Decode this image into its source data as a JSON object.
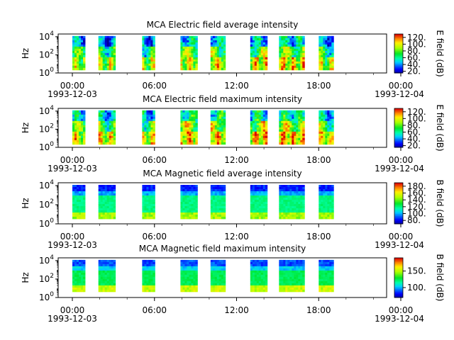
{
  "chart_data": [
    {
      "type": "heatmap",
      "title": "MCA  Electric field average intensity",
      "ylabel": "Hz",
      "y_ticks": [
        "10",
        "10",
        "10"
      ],
      "y_exps": [
        "0",
        "2",
        "4"
      ],
      "x_ticks": [
        "00:00",
        "06:00",
        "12:00",
        "18:00",
        "00:00"
      ],
      "x_dates": [
        "1993-12-03",
        "1993-12-04"
      ],
      "xlim": [
        "1993-12-03T00:00",
        "1993-12-04T00:00"
      ],
      "ylim_hz": [
        1,
        20000
      ],
      "yscale": "log",
      "colorbar_label": "E field (dB)",
      "colorbar_ticks": [
        "20.",
        "40.",
        "60.",
        "80.",
        "100.",
        "120."
      ],
      "colorbar_range": [
        15,
        130
      ],
      "data_blocks_hours": [
        [
          0.0,
          0.9
        ],
        [
          1.9,
          3.1
        ],
        [
          5.1,
          6.0
        ],
        [
          7.9,
          9.1
        ],
        [
          10.1,
          11.1
        ],
        [
          13.0,
          14.1
        ],
        [
          15.1,
          16.9
        ],
        [
          18.0,
          19.0
        ]
      ],
      "palette": "rainbow",
      "variant": "e_avg"
    },
    {
      "type": "heatmap",
      "title": "MCA  Electric field maximum intensity",
      "ylabel": "Hz",
      "y_ticks": [
        "10",
        "10",
        "10"
      ],
      "y_exps": [
        "0",
        "2",
        "4"
      ],
      "x_ticks": [
        "00:00",
        "06:00",
        "12:00",
        "18:00",
        "00:00"
      ],
      "x_dates": [
        "1993-12-03",
        "1993-12-04"
      ],
      "xlim": [
        "1993-12-03T00:00",
        "1993-12-04T00:00"
      ],
      "ylim_hz": [
        1,
        20000
      ],
      "yscale": "log",
      "colorbar_label": "E field (dB)",
      "colorbar_ticks": [
        "20.",
        "40.",
        "60.",
        "80.",
        "100.",
        "120."
      ],
      "colorbar_range": [
        15,
        130
      ],
      "data_blocks_hours": [
        [
          0.0,
          0.9
        ],
        [
          1.9,
          3.1
        ],
        [
          5.1,
          6.0
        ],
        [
          7.9,
          9.1
        ],
        [
          10.1,
          11.1
        ],
        [
          13.0,
          14.1
        ],
        [
          15.1,
          16.9
        ],
        [
          18.0,
          19.0
        ]
      ],
      "palette": "rainbow",
      "variant": "e_max"
    },
    {
      "type": "heatmap",
      "title": "MCA  Magnetic field average intensity",
      "ylabel": "Hz",
      "y_ticks": [
        "10",
        "10",
        "10"
      ],
      "y_exps": [
        "0",
        "2",
        "4"
      ],
      "x_ticks": [
        "00:00",
        "06:00",
        "12:00",
        "18:00",
        "00:00"
      ],
      "x_dates": [
        "1993-12-03",
        "1993-12-04"
      ],
      "xlim": [
        "1993-12-03T00:00",
        "1993-12-04T00:00"
      ],
      "ylim_hz": [
        1,
        20000
      ],
      "yscale": "log",
      "colorbar_label": "B field (dB)",
      "colorbar_ticks": [
        "80.",
        "100.",
        "120.",
        "140.",
        "160.",
        "180."
      ],
      "colorbar_range": [
        70,
        190
      ],
      "data_blocks_hours": [
        [
          0.0,
          0.9
        ],
        [
          1.9,
          3.1
        ],
        [
          5.1,
          6.0
        ],
        [
          7.9,
          9.1
        ],
        [
          10.1,
          11.1
        ],
        [
          13.0,
          14.1
        ],
        [
          15.1,
          16.9
        ],
        [
          18.0,
          19.0
        ]
      ],
      "palette": "rainbow",
      "variant": "b_avg"
    },
    {
      "type": "heatmap",
      "title": "MCA  Magnetic field maximum intensity",
      "ylabel": "Hz",
      "y_ticks": [
        "10",
        "10",
        "10"
      ],
      "y_exps": [
        "0",
        "2",
        "4"
      ],
      "x_ticks": [
        "00:00",
        "06:00",
        "12:00",
        "18:00",
        "00:00"
      ],
      "x_dates": [
        "1993-12-03",
        "1993-12-04"
      ],
      "xlim": [
        "1993-12-03T00:00",
        "1993-12-04T00:00"
      ],
      "ylim_hz": [
        1,
        20000
      ],
      "yscale": "log",
      "colorbar_label": "B field (dB)",
      "colorbar_ticks": [
        "100.",
        "150."
      ],
      "colorbar_range": [
        70,
        190
      ],
      "data_blocks_hours": [
        [
          0.0,
          0.9
        ],
        [
          1.9,
          3.1
        ],
        [
          5.1,
          6.0
        ],
        [
          7.9,
          9.1
        ],
        [
          10.1,
          11.1
        ],
        [
          13.0,
          14.1
        ],
        [
          15.1,
          16.9
        ],
        [
          18.0,
          19.0
        ]
      ],
      "palette": "rainbow",
      "variant": "b_max"
    }
  ]
}
